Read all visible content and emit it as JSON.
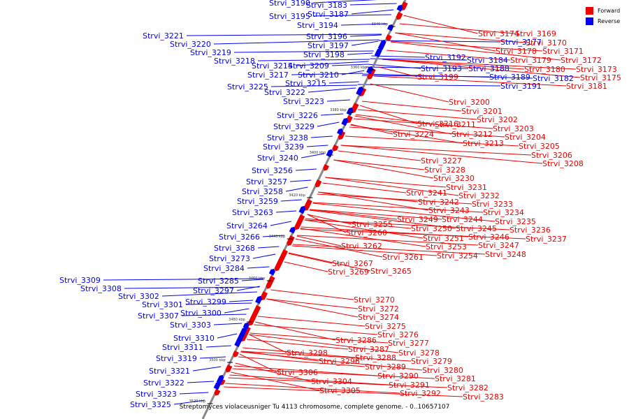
{
  "title": "Streptomyces violaceusniger Tu 4113 chromosome, complete genome. - 0..10657107",
  "legend": [
    {
      "label": "Forward",
      "color": "#ee0000"
    },
    {
      "label": "Reverse",
      "color": "#0000ee"
    }
  ],
  "colors": {
    "forward": "#ee0000",
    "reverse": "#0000ee",
    "backbone": "#888888",
    "tick": "#000000"
  },
  "ticks": [
    "3340 kbp",
    "3360 kbp",
    "3380 kbp",
    "3400 kbp",
    "3420 kbp",
    "3440 kbp",
    "3460 kbp",
    "3480 kbp",
    "3500 kbp",
    "3520 kbp"
  ],
  "reverse_genes": [
    "Strvi_3190",
    "Strvi_3183",
    "Strvi_3195",
    "Strvi_3187",
    "Strvi_3194",
    "Strvi_3196",
    "Strvi_3197",
    "Strvi_3198",
    "Strvi_3221",
    "Strvi_3220",
    "Strvi_3219",
    "Strvi_3218",
    "Strvi_3214",
    "Strvi_3209",
    "Strvi_3217",
    "Strvi_3210",
    "Strvi_3215",
    "Strvi_3225",
    "Strvi_3222",
    "Strvi_3223",
    "Strvi_3226",
    "Strvi_3229",
    "Strvi_3238",
    "Strvi_3239",
    "Strvi_3240",
    "Strvi_3256",
    "Strvi_3257",
    "Strvi_3258",
    "Strvi_3259",
    "Strvi_3263",
    "Strvi_3264",
    "Strvi_3266",
    "Strvi_3268",
    "Strvi_3273",
    "Strvi_3284",
    "Strvi_3285",
    "Strvi_3297",
    "Strvi_3309",
    "Strvi_3308",
    "Strvi_3302",
    "Strvi_3299",
    "Strvi_3301",
    "Strvi_3300",
    "Strvi_3307",
    "Strvi_3303",
    "Strvi_3310",
    "Strvi_3311",
    "Strvi_3319",
    "Strvi_3321",
    "Strvi_3322",
    "Strvi_3323",
    "Strvi_3325",
    "Strvi_3192",
    "Strvi_3184",
    "Strvi_3193",
    "Strvi_3189",
    "Strvi_3191",
    "Strvi_3182",
    "Strvi_3177",
    "Strvi_3188"
  ],
  "forward_genes": [
    "Strvi_3174",
    "Strvi_3169",
    "Strvi_3170",
    "Strvi_3178",
    "Strvi_3171",
    "Strvi_3179",
    "Strvi_3172",
    "Strvi_3180",
    "Strvi_3173",
    "Strvi_3175",
    "Strvi_3181",
    "Strvi_3199",
    "Strvi_3200",
    "Strvi_3201",
    "Strvi_3202",
    "Strvi_3216",
    "Strvi_3211",
    "Strvi_3203",
    "Strvi_3212",
    "Strvi_3224",
    "Strvi_3204",
    "Strvi_3213",
    "Strvi_3205",
    "Strvi_3206",
    "Strvi_3208",
    "Strvi_3227",
    "Strvi_3228",
    "Strvi_3230",
    "Strvi_3231",
    "Strvi_3241",
    "Strvi_3232",
    "Strvi_3242",
    "Strvi_3233",
    "Strvi_3243",
    "Strvi_3234",
    "Strvi_3244",
    "Strvi_3235",
    "Strvi_3249",
    "Strvi_3255",
    "Strvi_3245",
    "Strvi_3236",
    "Strvi_3250",
    "Strvi_3260",
    "Strvi_3246",
    "Strvi_3237",
    "Strvi_3251",
    "Strvi_3247",
    "Strvi_3262",
    "Strvi_3253",
    "Strvi_3248",
    "Strvi_3254",
    "Strvi_3261",
    "Strvi_3267",
    "Strvi_3269",
    "Strvi_3265",
    "Strvi_3270",
    "Strvi_3272",
    "Strvi_3274",
    "Strvi_3275",
    "Strvi_3276",
    "Strvi_3286",
    "Strvi_3277",
    "Strvi_3287",
    "Strvi_3278",
    "Strvi_3288",
    "Strvi_3279",
    "Strvi_3298",
    "Strvi_3296",
    "Strvi_3289",
    "Strvi_3280",
    "Strvi_3290",
    "Strvi_3281",
    "Strvi_3306",
    "Strvi_3291",
    "Strvi_3282",
    "Strvi_3304",
    "Strvi_3292",
    "Strvi_3283",
    "Strvi_3305"
  ]
}
